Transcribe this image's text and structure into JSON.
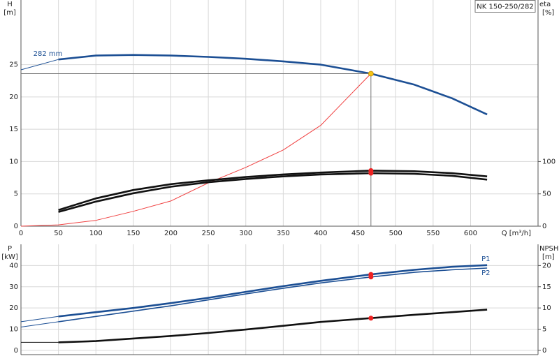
{
  "chart_data": [
    {
      "type": "line",
      "title": "NK 150-250/282",
      "xlabel": "Q [m³/h]",
      "ylabel": "H",
      "yunit": "[m]",
      "y2label": "eta",
      "y2unit": "[%]",
      "xlim": [
        0,
        690
      ],
      "xticks": [
        0,
        50,
        100,
        150,
        200,
        250,
        300,
        350,
        400,
        450,
        500,
        550,
        600
      ],
      "xtick_labels": true,
      "ylim": [
        0,
        35
      ],
      "yticks": [
        0,
        5,
        10,
        15,
        20,
        25
      ],
      "y2lim": [
        0,
        350
      ],
      "y2ticks": [
        0,
        50,
        100
      ],
      "grid": true,
      "series": [
        {
          "style": "thin",
          "color": "#1c4f94",
          "x": [
            0,
            50
          ],
          "values": [
            24.2,
            25.8
          ]
        },
        {
          "name": "282 mm",
          "label_at": "start-above",
          "style": "thick",
          "color": "#1c4f94",
          "x": [
            50,
            100,
            150,
            200,
            250,
            300,
            350,
            400,
            467,
            525,
            575,
            622
          ],
          "values": [
            25.8,
            26.4,
            26.5,
            26.4,
            26.2,
            25.9,
            25.5,
            25.0,
            23.6,
            21.9,
            19.8,
            17.3
          ]
        },
        {
          "style": "thin",
          "color": "#f04040",
          "x": [
            0,
            50,
            100,
            150,
            200,
            250,
            300,
            350,
            400,
            430,
            467
          ],
          "values": [
            0,
            0.2,
            0.9,
            2.3,
            3.9,
            6.7,
            9.1,
            11.8,
            15.6,
            19.2,
            23.6
          ]
        },
        {
          "style": "thick",
          "color": "#111111",
          "axis": "y2",
          "x": [
            50,
            100,
            150,
            200,
            250,
            300,
            350,
            400,
            467,
            525,
            575,
            622
          ],
          "values": [
            25,
            43,
            56,
            65,
            71,
            76,
            80,
            83,
            86,
            85,
            82,
            77
          ]
        },
        {
          "style": "thick",
          "color": "#111111",
          "axis": "y2",
          "x": [
            50,
            100,
            150,
            200,
            250,
            300,
            350,
            400,
            467,
            525,
            575,
            622
          ],
          "values": [
            22,
            38,
            51,
            61,
            68,
            73,
            77,
            80,
            82,
            81,
            78,
            72
          ]
        }
      ],
      "markers": [
        {
          "x": 467,
          "y": 23.6,
          "color": "#f5c518",
          "crosshair": true
        },
        {
          "x": 467,
          "y": 86,
          "color": "#ee2222",
          "axis": "y2"
        },
        {
          "x": 467,
          "y": 82,
          "color": "#ee2222",
          "axis": "y2"
        }
      ]
    },
    {
      "type": "line",
      "ylabel": "P",
      "yunit": "[kW]",
      "y2label": "NPSH",
      "y2unit": "[m]",
      "xlim": [
        0,
        690
      ],
      "xticks": [
        0,
        50,
        100,
        150,
        200,
        250,
        300,
        350,
        400,
        450,
        500,
        550,
        600
      ],
      "xtick_labels": false,
      "ylim": [
        -2,
        50
      ],
      "yticks": [
        0,
        10,
        20,
        30,
        40
      ],
      "y2lim": [
        -1,
        25
      ],
      "y2ticks": [
        0,
        5,
        10,
        15,
        20
      ],
      "grid": true,
      "series": [
        {
          "style": "thin",
          "color": "#1c4f94",
          "x": [
            0,
            50
          ],
          "values": [
            13.5,
            16
          ]
        },
        {
          "name": "P1",
          "label_at": "end-above",
          "style": "thick",
          "color": "#1c4f94",
          "x": [
            50,
            100,
            150,
            200,
            250,
            300,
            350,
            400,
            467,
            525,
            575,
            622
          ],
          "values": [
            16,
            18,
            20,
            22.3,
            24.8,
            27.6,
            30.3,
            32.8,
            35.8,
            38,
            39.4,
            40.2
          ]
        },
        {
          "style": "thin",
          "color": "#1c4f94",
          "x": [
            0,
            50
          ],
          "values": [
            11,
            13.5
          ]
        },
        {
          "name": "P2",
          "label_at": "end-below",
          "style": "medium",
          "color": "#1c4f94",
          "x": [
            50,
            100,
            150,
            200,
            250,
            300,
            350,
            400,
            467,
            525,
            575,
            622
          ],
          "values": [
            13.5,
            16,
            18.5,
            21,
            23.8,
            26.6,
            29.3,
            31.8,
            34.6,
            36.8,
            38,
            38.8
          ]
        },
        {
          "style": "thin",
          "color": "#111111",
          "axis": "y2",
          "x": [
            0,
            50
          ],
          "values": [
            1.9,
            1.9
          ]
        },
        {
          "style": "thick",
          "color": "#111111",
          "axis": "y2",
          "x": [
            50,
            100,
            150,
            200,
            250,
            300,
            350,
            400,
            467,
            525,
            575,
            622
          ],
          "values": [
            1.9,
            2.2,
            2.8,
            3.4,
            4.1,
            4.9,
            5.8,
            6.7,
            7.6,
            8.4,
            9.0,
            9.6
          ]
        }
      ],
      "markers": [
        {
          "x": 467,
          "y": 35.8,
          "color": "#ee2222"
        },
        {
          "x": 467,
          "y": 34.6,
          "color": "#ee2222"
        },
        {
          "x": 467,
          "y": 7.6,
          "color": "#ee2222",
          "axis": "y2"
        }
      ]
    }
  ]
}
